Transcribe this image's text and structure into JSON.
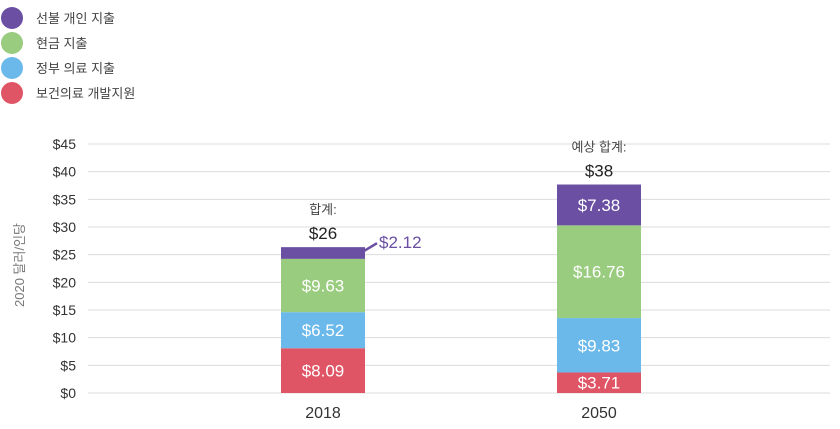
{
  "chart_data": {
    "type": "bar",
    "stacked": true,
    "categories": [
      "2018",
      "2050"
    ],
    "series": [
      {
        "name": "보건의료 개발지원",
        "color": "#e05565",
        "values": [
          8.09,
          3.71
        ]
      },
      {
        "name": "정부 의료 지출",
        "color": "#6bb9ea",
        "values": [
          6.52,
          9.83
        ]
      },
      {
        "name": "현금 지출",
        "color": "#99cc7f",
        "values": [
          9.63,
          16.76
        ]
      },
      {
        "name": "선불 개인 지출",
        "color": "#6a4fa2",
        "values": [
          2.12,
          7.38
        ]
      }
    ],
    "value_labels": [
      [
        "$8.09",
        "$6.52",
        "$9.63",
        "$2.12"
      ],
      [
        "$3.71",
        "$9.83",
        "$16.76",
        "$7.38"
      ]
    ],
    "totals": [
      {
        "caption": "합계:",
        "value_text": "$26"
      },
      {
        "caption": "예상 합계:",
        "value_text": "$38"
      }
    ],
    "ylabel": "2020 달러/인당",
    "xlabel": "",
    "ylim": [
      0,
      45
    ],
    "yticks": [
      0,
      5,
      10,
      15,
      20,
      25,
      30,
      35,
      40,
      45
    ],
    "ytick_labels": [
      "$0",
      "$5",
      "$10",
      "$15",
      "$20",
      "$25",
      "$30",
      "$35",
      "$40",
      "$45"
    ],
    "grid": true,
    "legend_position": "top-left",
    "legend_order": [
      "선불 개인 지출",
      "현금 지출",
      "정부 의료 지출",
      "보건의료 개발지원"
    ]
  }
}
